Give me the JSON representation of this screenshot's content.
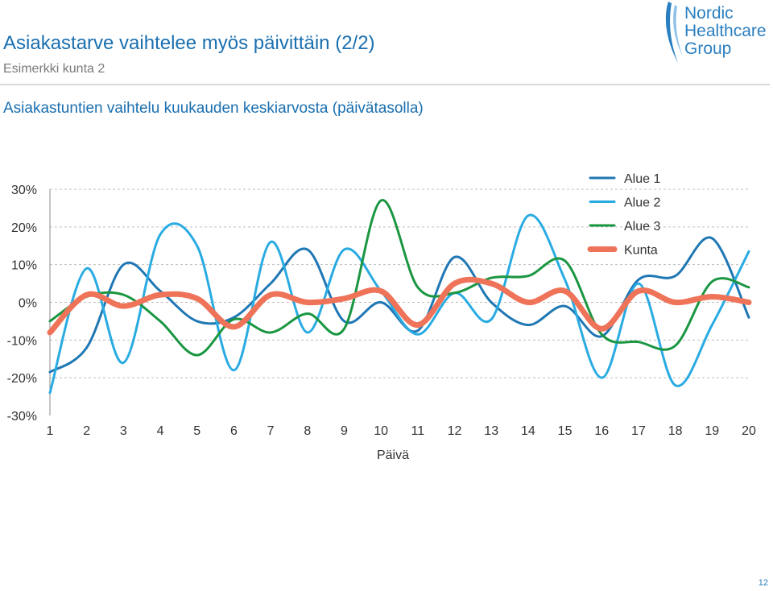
{
  "header": {
    "title": "Asiakastarve vaihtelee myös päivittäin (2/2)",
    "subtitle": "Esimerkki kunta 2",
    "section_title": "Asiakastuntien vaihtelu kuukauden keskiarvosta (päivätasolla)"
  },
  "logo": {
    "line1": "Nordic",
    "line2": "Healthcare",
    "line3": "Group",
    "color": "#2a7fc1"
  },
  "footer": {
    "page_number": "12"
  },
  "chart_data": {
    "type": "line",
    "xlabel": "Päivä",
    "ylabel": "",
    "x": [
      1,
      2,
      3,
      4,
      5,
      6,
      7,
      8,
      9,
      10,
      11,
      12,
      13,
      14,
      15,
      16,
      17,
      18,
      19,
      20
    ],
    "ylim": [
      -30,
      30
    ],
    "yticks": [
      -30,
      -20,
      -10,
      0,
      10,
      20,
      30
    ],
    "ytick_labels": [
      "-30%",
      "-20%",
      "-10%",
      "0%",
      "10%",
      "20%",
      "30%"
    ],
    "grid": "dashed horizontal",
    "legend_position": "top-right",
    "series": [
      {
        "name": "Alue 1",
        "color": "#1f77b4",
        "width": 3,
        "values": [
          -18.5,
          -12,
          10,
          3,
          -5,
          -4,
          5,
          14,
          -5,
          0,
          -7.5,
          12,
          0,
          -6,
          -1,
          -9,
          6,
          7,
          17,
          -4
        ]
      },
      {
        "name": "Alue 2",
        "color": "#29abe2",
        "width": 3,
        "values": [
          -24,
          9,
          -16,
          18,
          15,
          -18,
          16,
          -8,
          14,
          3,
          -8.5,
          2.5,
          -4.5,
          23,
          6,
          -20,
          5,
          -22,
          -6,
          13.5
        ]
      },
      {
        "name": "Alue 3",
        "color": "#1a9641",
        "width": 3,
        "values": [
          -5,
          1.5,
          2,
          -5,
          -14,
          -4.5,
          -8,
          -3,
          -7,
          27,
          4,
          2.5,
          6.5,
          7,
          11,
          -8.5,
          -10.5,
          -11.5,
          5.5,
          4
        ]
      },
      {
        "name": "Kunta",
        "color": "#ee7358",
        "width": 7,
        "values": [
          -8,
          2,
          -1,
          2,
          1,
          -6.5,
          2,
          0,
          1,
          3,
          -6,
          5,
          5,
          0,
          3,
          -7,
          3,
          0,
          1.5,
          0
        ]
      }
    ]
  }
}
